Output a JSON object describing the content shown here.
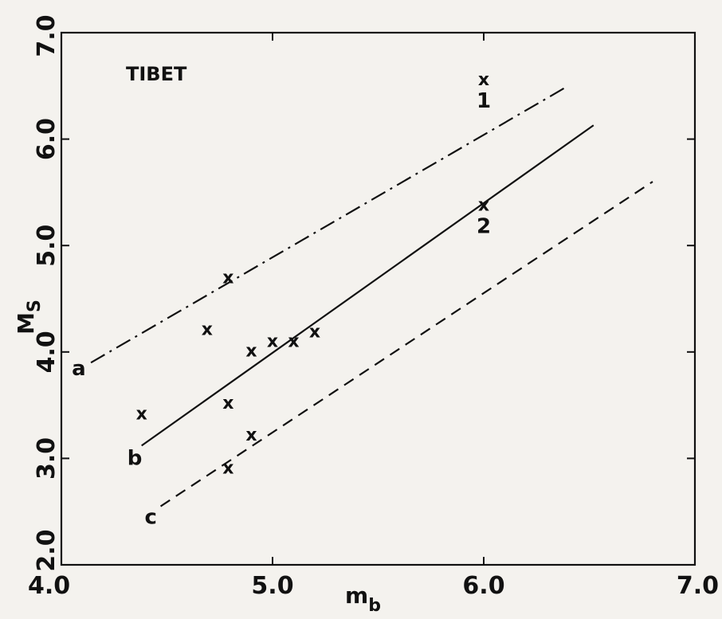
{
  "chart_data": {
    "type": "scatter",
    "title": "TIBET",
    "xlabel": "m",
    "xlabel_sub": "b",
    "ylabel": "M",
    "ylabel_sub": "S",
    "xlim": [
      4.0,
      7.0
    ],
    "ylim": [
      2.0,
      7.0
    ],
    "x_ticks": [
      "4.0",
      "5.0",
      "6.0",
      "7.0"
    ],
    "y_ticks": [
      "2.0",
      "3.0",
      "4.0",
      "5.0",
      "6.0",
      "7.0"
    ],
    "grid": false,
    "marker_symbol": "x",
    "points": [
      {
        "x": 4.38,
        "y": 3.42
      },
      {
        "x": 4.69,
        "y": 4.21
      },
      {
        "x": 4.79,
        "y": 4.7
      },
      {
        "x": 4.79,
        "y": 3.52
      },
      {
        "x": 4.79,
        "y": 2.91
      },
      {
        "x": 4.9,
        "y": 4.01
      },
      {
        "x": 4.9,
        "y": 3.22
      },
      {
        "x": 5.0,
        "y": 4.1
      },
      {
        "x": 5.1,
        "y": 4.1
      },
      {
        "x": 5.2,
        "y": 4.19
      },
      {
        "x": 6.0,
        "y": 6.56,
        "label": "1"
      },
      {
        "x": 6.0,
        "y": 5.38,
        "label": "2"
      }
    ],
    "lines": [
      {
        "name": "a",
        "style": "dash-dot",
        "x": [
          4.14,
          6.4
        ],
        "y": [
          3.9,
          6.5
        ]
      },
      {
        "name": "b",
        "style": "solid",
        "x": [
          4.38,
          6.52
        ],
        "y": [
          3.12,
          6.13
        ]
      },
      {
        "name": "c",
        "style": "dashed",
        "x": [
          4.47,
          6.8
        ],
        "y": [
          2.55,
          5.6
        ]
      }
    ]
  }
}
